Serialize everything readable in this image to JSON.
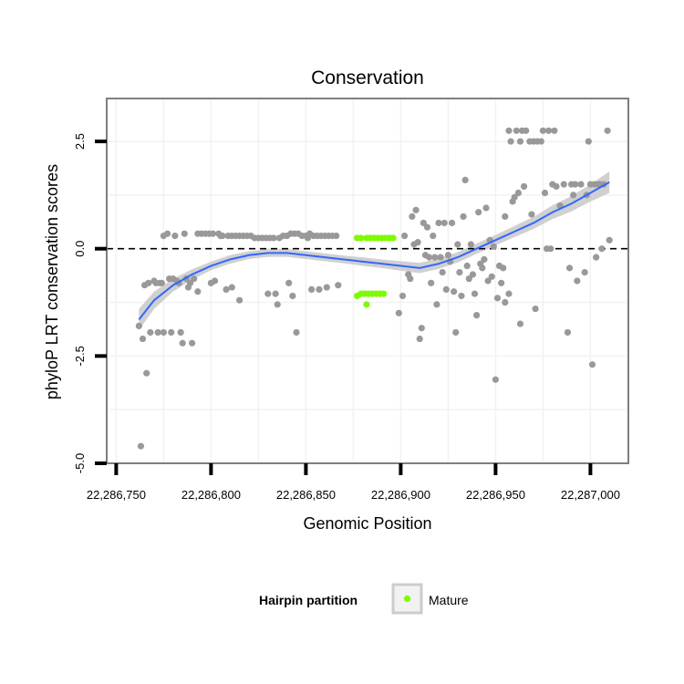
{
  "chart_data": {
    "type": "scatter",
    "title": "Conservation",
    "xlabel": "Genomic Position",
    "ylabel": "phyloP LRT conservation scores",
    "xlim": [
      22286745,
      22287020
    ],
    "ylim": [
      -5.0,
      3.5
    ],
    "x_ticks": [
      22286750,
      22286800,
      22286850,
      22286900,
      22286950,
      22287000
    ],
    "x_tick_labels": [
      "22,286,750",
      "22,286,800",
      "22,286,850",
      "22,286,900",
      "22,286,950",
      "22,287,000"
    ],
    "y_ticks": [
      -5.0,
      -2.5,
      0.0,
      2.5
    ],
    "y_tick_labels": [
      "-5.0",
      "-2.5",
      "0.0",
      "2.5"
    ],
    "reference_line": {
      "y": 0,
      "style": "dashed"
    },
    "grid": true,
    "legend": {
      "title": "Hairpin partition",
      "position": "bottom",
      "entries": [
        {
          "label": "Mature",
          "color": "#7cfc00"
        }
      ]
    },
    "colors": {
      "other": "#999999",
      "mature": "#7cfc00",
      "smooth": "#3366ff",
      "ribbon": "#c8c8c8"
    },
    "series": [
      {
        "name": "Mature",
        "color": "#7cfc00",
        "points": [
          [
            22286877,
            0.25
          ],
          [
            22286879,
            0.25
          ],
          [
            22286882,
            0.25
          ],
          [
            22286884,
            0.25
          ],
          [
            22286886,
            0.25
          ],
          [
            22286888,
            0.25
          ],
          [
            22286890,
            0.25
          ],
          [
            22286892,
            0.25
          ],
          [
            22286894,
            0.25
          ],
          [
            22286896,
            0.25
          ],
          [
            22286877,
            -1.1
          ],
          [
            22286879,
            -1.05
          ],
          [
            22286881,
            -1.05
          ],
          [
            22286883,
            -1.05
          ],
          [
            22286885,
            -1.05
          ],
          [
            22286887,
            -1.05
          ],
          [
            22286889,
            -1.05
          ],
          [
            22286891,
            -1.05
          ],
          [
            22286882,
            -1.3
          ]
        ]
      },
      {
        "color": "#999999",
        "points": [
          [
            22286762,
            -1.8
          ],
          [
            22286763,
            -4.6
          ],
          [
            22286764,
            -2.1
          ],
          [
            22286765,
            -0.85
          ],
          [
            22286766,
            -2.9
          ],
          [
            22286767,
            -0.8
          ],
          [
            22286768,
            -1.95
          ],
          [
            22286770,
            -0.75
          ],
          [
            22286771,
            -0.8
          ],
          [
            22286772,
            -1.95
          ],
          [
            22286773,
            -0.8
          ],
          [
            22286774,
            -0.8
          ],
          [
            22286775,
            -1.95
          ],
          [
            22286775,
            0.3
          ],
          [
            22286777,
            0.35
          ],
          [
            22286778,
            -0.7
          ],
          [
            22286779,
            -1.95
          ],
          [
            22286780,
            -0.7
          ],
          [
            22286781,
            0.3
          ],
          [
            22286782,
            -0.75
          ],
          [
            22286783,
            -0.8
          ],
          [
            22286784,
            -1.95
          ],
          [
            22286785,
            -2.2
          ],
          [
            22286786,
            0.35
          ],
          [
            22286787,
            -0.7
          ],
          [
            22286788,
            -0.9
          ],
          [
            22286789,
            -0.8
          ],
          [
            22286790,
            -2.2
          ],
          [
            22286791,
            -0.7
          ],
          [
            22286793,
            -1.0
          ],
          [
            22286793,
            0.35
          ],
          [
            22286795,
            0.35
          ],
          [
            22286797,
            0.35
          ],
          [
            22286799,
            0.35
          ],
          [
            22286800,
            -0.8
          ],
          [
            22286801,
            0.35
          ],
          [
            22286802,
            -0.75
          ],
          [
            22286804,
            0.35
          ],
          [
            22286805,
            0.3
          ],
          [
            22286806,
            0.3
          ],
          [
            22286808,
            -0.95
          ],
          [
            22286809,
            0.3
          ],
          [
            22286811,
            -0.9
          ],
          [
            22286811,
            0.3
          ],
          [
            22286813,
            0.3
          ],
          [
            22286815,
            -1.2
          ],
          [
            22286815,
            0.3
          ],
          [
            22286817,
            0.3
          ],
          [
            22286819,
            0.3
          ],
          [
            22286821,
            0.3
          ],
          [
            22286823,
            0.25
          ],
          [
            22286825,
            0.25
          ],
          [
            22286827,
            0.25
          ],
          [
            22286829,
            0.25
          ],
          [
            22286830,
            -1.05
          ],
          [
            22286831,
            0.25
          ],
          [
            22286833,
            0.25
          ],
          [
            22286834,
            -1.05
          ],
          [
            22286835,
            -1.3
          ],
          [
            22286836,
            0.25
          ],
          [
            22286838,
            0.3
          ],
          [
            22286840,
            0.3
          ],
          [
            22286841,
            -0.8
          ],
          [
            22286842,
            0.35
          ],
          [
            22286843,
            -1.1
          ],
          [
            22286844,
            0.35
          ],
          [
            22286845,
            -1.95
          ],
          [
            22286846,
            0.35
          ],
          [
            22286848,
            0.3
          ],
          [
            22286850,
            0.3
          ],
          [
            22286851,
            0.25
          ],
          [
            22286852,
            0.35
          ],
          [
            22286853,
            -0.95
          ],
          [
            22286854,
            0.3
          ],
          [
            22286856,
            0.3
          ],
          [
            22286857,
            -0.95
          ],
          [
            22286858,
            0.3
          ],
          [
            22286860,
            0.3
          ],
          [
            22286861,
            -0.9
          ],
          [
            22286862,
            0.3
          ],
          [
            22286864,
            0.3
          ],
          [
            22286866,
            0.3
          ],
          [
            22286867,
            -0.85
          ],
          [
            22286899,
            -1.5
          ],
          [
            22286901,
            -1.1
          ],
          [
            22286902,
            0.3
          ],
          [
            22286904,
            -0.6
          ],
          [
            22286905,
            -0.7
          ],
          [
            22286906,
            0.75
          ],
          [
            22286907,
            0.1
          ],
          [
            22286908,
            0.9
          ],
          [
            22286909,
            0.15
          ],
          [
            22286910,
            -2.1
          ],
          [
            22286911,
            -1.85
          ],
          [
            22286912,
            0.6
          ],
          [
            22286913,
            -0.15
          ],
          [
            22286914,
            0.5
          ],
          [
            22286915,
            -0.2
          ],
          [
            22286916,
            -0.8
          ],
          [
            22286917,
            0.3
          ],
          [
            22286918,
            -0.2
          ],
          [
            22286919,
            -1.3
          ],
          [
            22286920,
            0.6
          ],
          [
            22286921,
            -0.2
          ],
          [
            22286922,
            -0.55
          ],
          [
            22286923,
            0.6
          ],
          [
            22286924,
            -0.95
          ],
          [
            22286925,
            -0.15
          ],
          [
            22286926,
            -0.3
          ],
          [
            22286927,
            0.6
          ],
          [
            22286928,
            -1.0
          ],
          [
            22286929,
            -1.95
          ],
          [
            22286930,
            0.1
          ],
          [
            22286931,
            -0.55
          ],
          [
            22286932,
            -1.1
          ],
          [
            22286933,
            0.75
          ],
          [
            22286934,
            1.6
          ],
          [
            22286935,
            -0.4
          ],
          [
            22286936,
            -0.7
          ],
          [
            22286937,
            0.1
          ],
          [
            22286938,
            -0.6
          ],
          [
            22286939,
            -1.05
          ],
          [
            22286940,
            -1.55
          ],
          [
            22286941,
            0.85
          ],
          [
            22286942,
            -0.35
          ],
          [
            22286943,
            -0.45
          ],
          [
            22286944,
            -0.25
          ],
          [
            22286945,
            0.95
          ],
          [
            22286946,
            -0.75
          ],
          [
            22286947,
            0.2
          ],
          [
            22286948,
            -0.65
          ],
          [
            22286949,
            0.05
          ],
          [
            22286950,
            -3.05
          ],
          [
            22286951,
            -1.15
          ],
          [
            22286952,
            -0.4
          ],
          [
            22286953,
            -0.8
          ],
          [
            22286954,
            -0.45
          ],
          [
            22286955,
            -1.25
          ],
          [
            22286955,
            0.75
          ],
          [
            22286957,
            -1.05
          ],
          [
            22286957,
            2.75
          ],
          [
            22286958,
            2.5
          ],
          [
            22286959,
            1.1
          ],
          [
            22286960,
            1.2
          ],
          [
            22286961,
            2.75
          ],
          [
            22286962,
            1.3
          ],
          [
            22286963,
            -1.75
          ],
          [
            22286963,
            2.5
          ],
          [
            22286964,
            2.75
          ],
          [
            22286965,
            1.45
          ],
          [
            22286966,
            2.75
          ],
          [
            22286968,
            2.5
          ],
          [
            22286969,
            0.8
          ],
          [
            22286970,
            2.5
          ],
          [
            22286971,
            -1.4
          ],
          [
            22286972,
            2.5
          ],
          [
            22286974,
            2.5
          ],
          [
            22286975,
            2.75
          ],
          [
            22286976,
            1.3
          ],
          [
            22286977,
            0.0
          ],
          [
            22286978,
            2.75
          ],
          [
            22286979,
            0.0
          ],
          [
            22286980,
            1.5
          ],
          [
            22286981,
            2.75
          ],
          [
            22286982,
            1.45
          ],
          [
            22286984,
            1.0
          ],
          [
            22286986,
            1.5
          ],
          [
            22286988,
            -1.95
          ],
          [
            22286989,
            -0.45
          ],
          [
            22286990,
            1.5
          ],
          [
            22286991,
            1.25
          ],
          [
            22286992,
            1.5
          ],
          [
            22286993,
            -0.75
          ],
          [
            22286995,
            1.5
          ],
          [
            22286997,
            -0.55
          ],
          [
            22286998,
            1.25
          ],
          [
            22286999,
            2.5
          ],
          [
            22287000,
            1.5
          ],
          [
            22287001,
            -2.7
          ],
          [
            22287002,
            1.5
          ],
          [
            22287003,
            -0.2
          ],
          [
            22287004,
            1.5
          ],
          [
            22287005,
            1.5
          ],
          [
            22287006,
            0.0
          ],
          [
            22287007,
            1.5
          ],
          [
            22287009,
            2.75
          ],
          [
            22287010,
            0.2
          ]
        ]
      }
    ],
    "smooth_line": {
      "x": [
        22286762,
        22286770,
        22286780,
        22286790,
        22286800,
        22286810,
        22286820,
        22286830,
        22286840,
        22286850,
        22286860,
        22286870,
        22286880,
        22286890,
        22286900,
        22286910,
        22286920,
        22286930,
        22286940,
        22286950,
        22286960,
        22286970,
        22286980,
        22286990,
        22287000,
        22287010
      ],
      "y": [
        -1.65,
        -1.2,
        -0.85,
        -0.6,
        -0.4,
        -0.25,
        -0.15,
        -0.1,
        -0.1,
        -0.15,
        -0.2,
        -0.25,
        -0.3,
        -0.35,
        -0.4,
        -0.45,
        -0.35,
        -0.2,
        0.0,
        0.2,
        0.4,
        0.6,
        0.85,
        1.05,
        1.3,
        1.55
      ],
      "ribbon_halfwidth": [
        0.25,
        0.2,
        0.15,
        0.12,
        0.1,
        0.1,
        0.09,
        0.09,
        0.09,
        0.09,
        0.09,
        0.09,
        0.1,
        0.1,
        0.11,
        0.12,
        0.12,
        0.12,
        0.12,
        0.12,
        0.13,
        0.14,
        0.16,
        0.18,
        0.2,
        0.25
      ]
    }
  }
}
